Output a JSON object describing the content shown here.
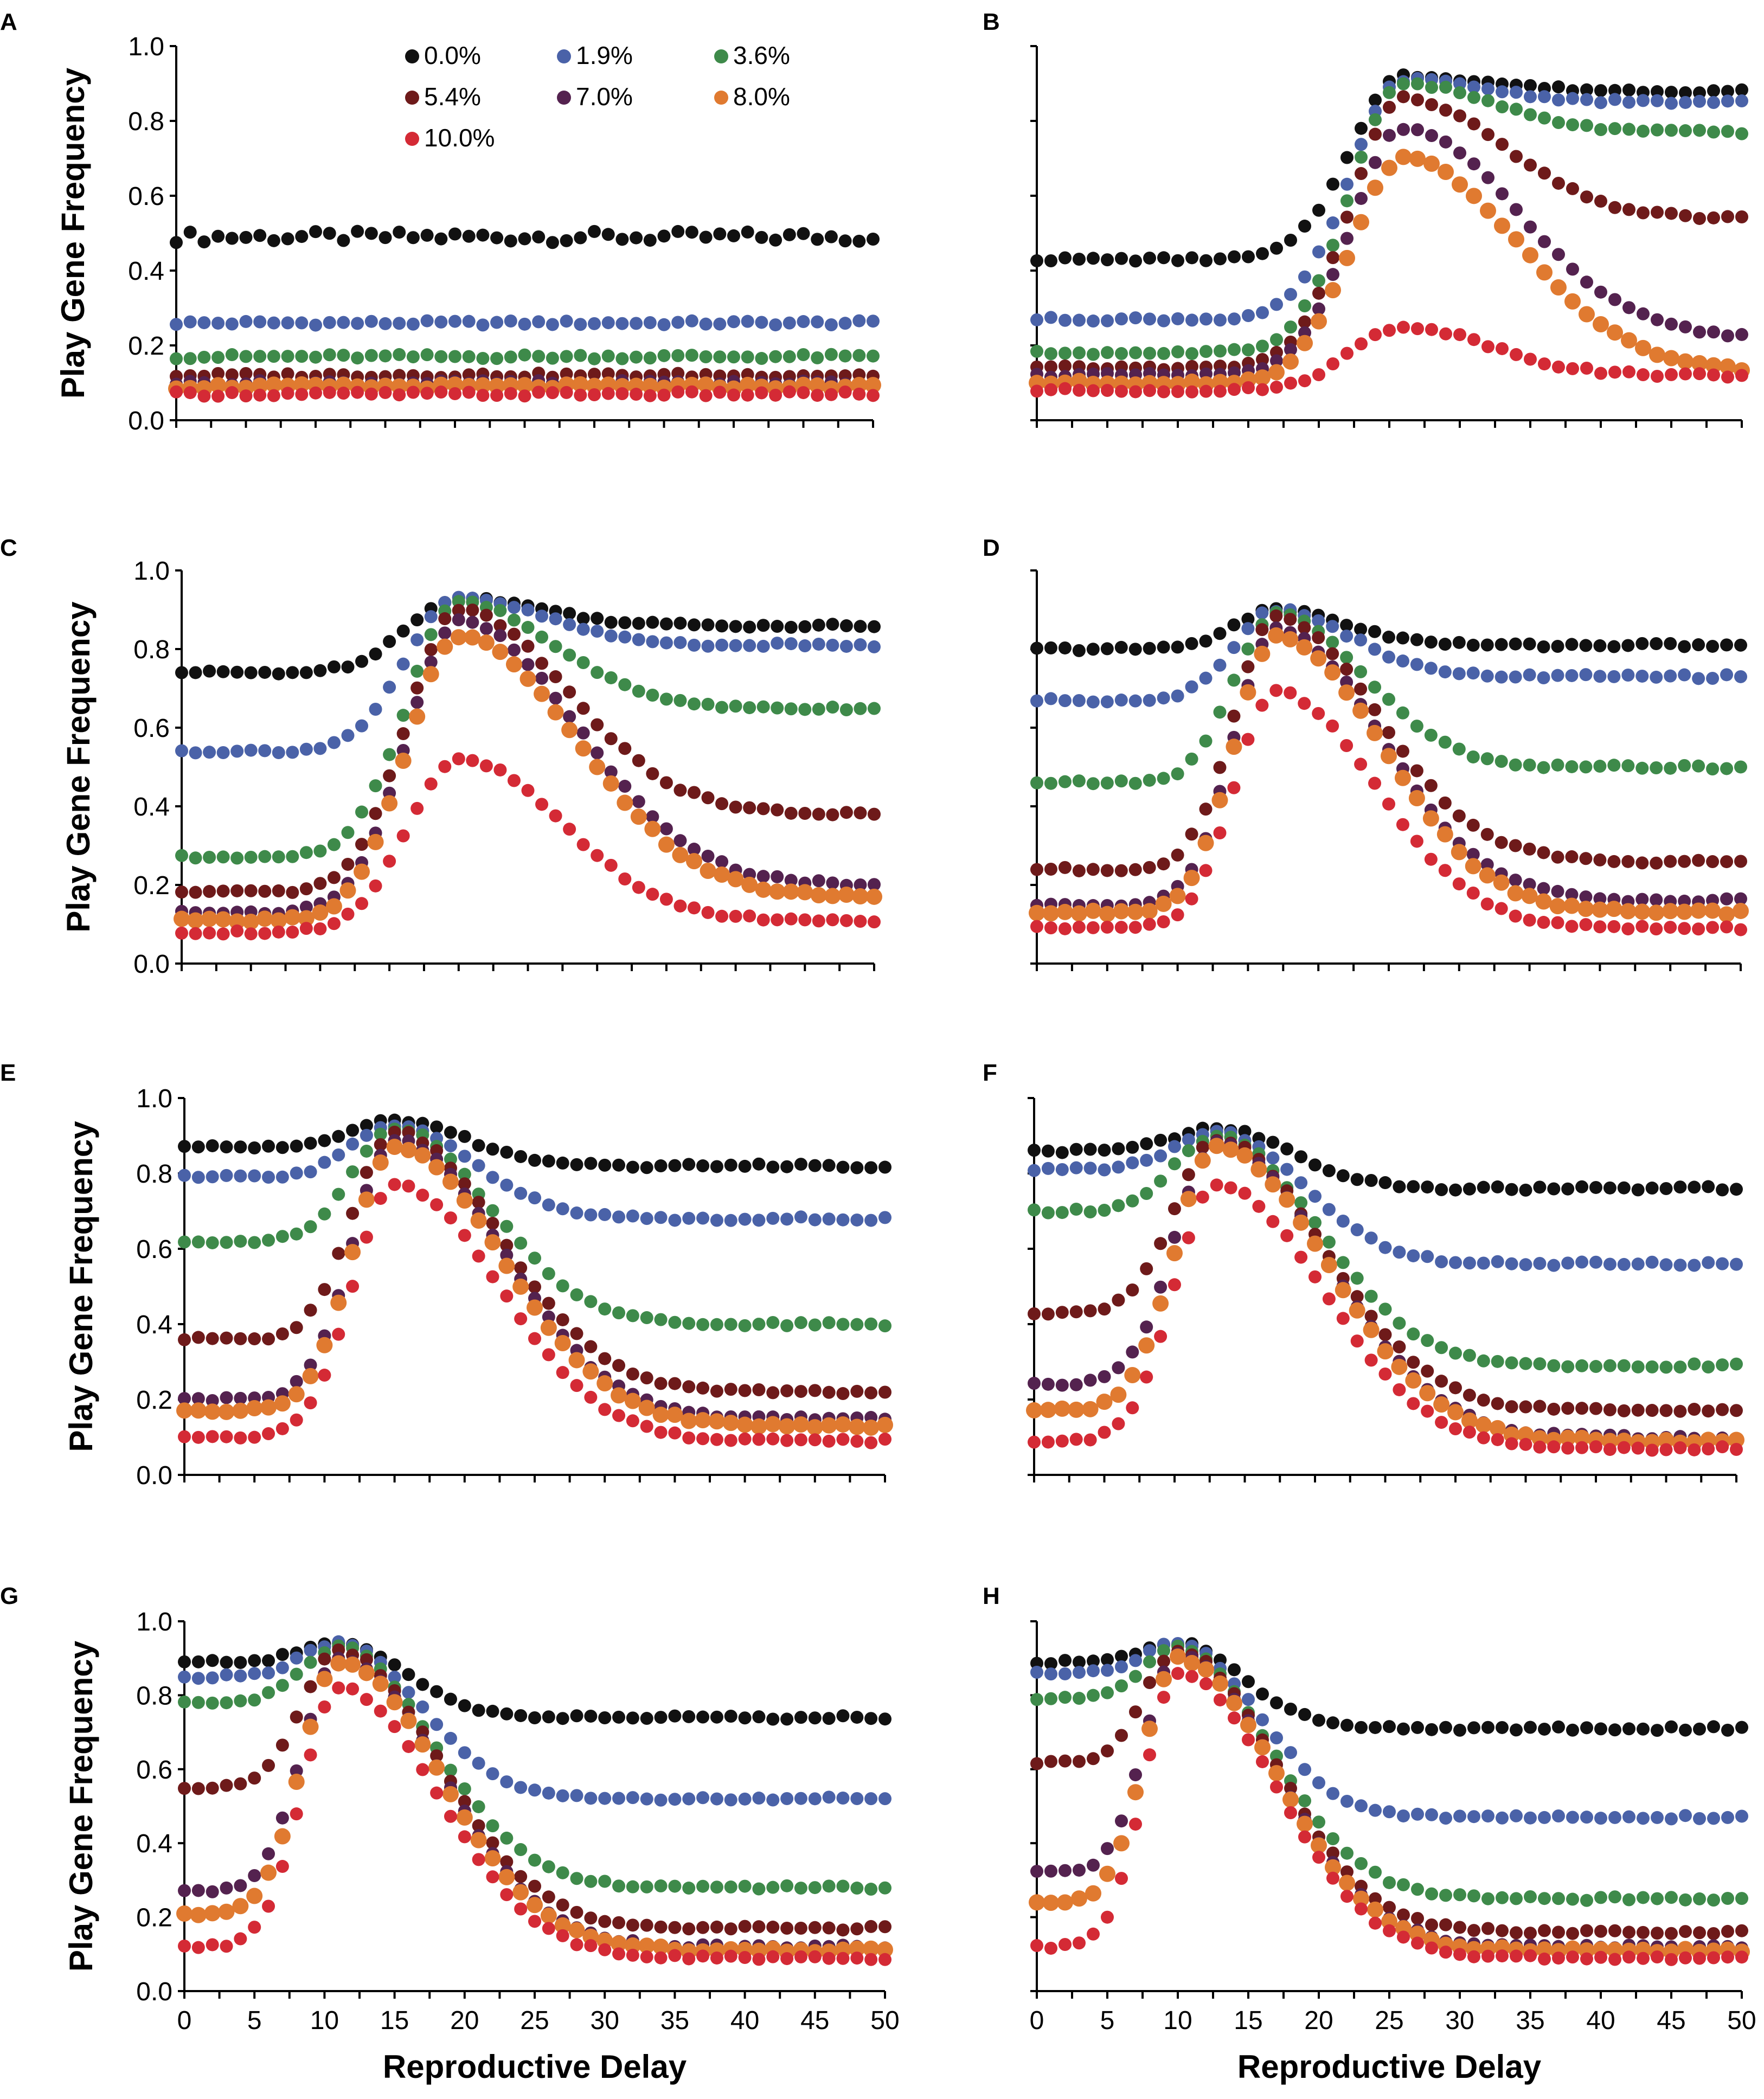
{
  "figure": {
    "ylabel": "Play Gene Frequency",
    "xlabel": "Reproductive Delay"
  },
  "legend": [
    {
      "label": "0.0%",
      "color": "#111111"
    },
    {
      "label": "1.9%",
      "color": "#4a62a8"
    },
    {
      "label": "3.6%",
      "color": "#3e8a4a"
    },
    {
      "label": "5.4%",
      "color": "#6e1a1a"
    },
    {
      "label": "7.0%",
      "color": "#54224f"
    },
    {
      "label": "8.0%",
      "color": "#e07a30"
    },
    {
      "label": "10.0%",
      "color": "#d42a35"
    }
  ],
  "axes": {
    "x_ticks": [
      "0",
      "5",
      "10",
      "15",
      "20",
      "25",
      "30",
      "35",
      "40",
      "45",
      "50"
    ],
    "y_ticks": [
      "0.0",
      "0.2",
      "0.4",
      "0.6",
      "0.8",
      "1.0"
    ],
    "xlim": [
      0,
      50
    ],
    "ylim": [
      0,
      1
    ]
  },
  "chart_data": [
    {
      "type": "scatter",
      "panel": "A",
      "peak": 0,
      "width": 12,
      "series": [
        {
          "name": "0.0%",
          "base": 0.49,
          "peak": 0.49,
          "tail": 0.49
        },
        {
          "name": "1.9%",
          "base": 0.26,
          "peak": 0.26,
          "tail": 0.26
        },
        {
          "name": "3.6%",
          "base": 0.17,
          "peak": 0.17,
          "tail": 0.17
        },
        {
          "name": "5.4%",
          "base": 0.12,
          "peak": 0.12,
          "tail": 0.12
        },
        {
          "name": "7.0%",
          "base": 0.1,
          "peak": 0.1,
          "tail": 0.1
        },
        {
          "name": "8.0%",
          "base": 0.09,
          "peak": 0.09,
          "tail": 0.09
        },
        {
          "name": "10.0%",
          "base": 0.07,
          "peak": 0.07,
          "tail": 0.07
        }
      ]
    },
    {
      "type": "scatter",
      "panel": "B",
      "peak": 26,
      "width": 5,
      "series": [
        {
          "name": "0.0%",
          "base": 0.43,
          "peak": 0.92,
          "tail": 0.88
        },
        {
          "name": "1.9%",
          "base": 0.27,
          "peak": 0.91,
          "tail": 0.85
        },
        {
          "name": "3.6%",
          "base": 0.18,
          "peak": 0.9,
          "tail": 0.77
        },
        {
          "name": "5.4%",
          "base": 0.14,
          "peak": 0.86,
          "tail": 0.54
        },
        {
          "name": "7.0%",
          "base": 0.12,
          "peak": 0.78,
          "tail": 0.22
        },
        {
          "name": "8.0%",
          "base": 0.1,
          "peak": 0.7,
          "tail": 0.13
        },
        {
          "name": "10.0%",
          "base": 0.08,
          "peak": 0.25,
          "tail": 0.12
        }
      ]
    },
    {
      "type": "scatter",
      "panel": "C",
      "peak": 20,
      "width": 5,
      "series": [
        {
          "name": "0.0%",
          "base": 0.74,
          "peak": 0.93,
          "tail": 0.86
        },
        {
          "name": "1.9%",
          "base": 0.54,
          "peak": 0.93,
          "tail": 0.81
        },
        {
          "name": "3.6%",
          "base": 0.27,
          "peak": 0.92,
          "tail": 0.65
        },
        {
          "name": "5.4%",
          "base": 0.18,
          "peak": 0.9,
          "tail": 0.38
        },
        {
          "name": "7.0%",
          "base": 0.13,
          "peak": 0.87,
          "tail": 0.2
        },
        {
          "name": "8.0%",
          "base": 0.11,
          "peak": 0.83,
          "tail": 0.17
        },
        {
          "name": "10.0%",
          "base": 0.08,
          "peak": 0.52,
          "tail": 0.11
        }
      ]
    },
    {
      "type": "scatter",
      "panel": "D",
      "peak": 17,
      "width": 4,
      "series": [
        {
          "name": "0.0%",
          "base": 0.8,
          "peak": 0.9,
          "tail": 0.81
        },
        {
          "name": "1.9%",
          "base": 0.67,
          "peak": 0.9,
          "tail": 0.73
        },
        {
          "name": "3.6%",
          "base": 0.46,
          "peak": 0.89,
          "tail": 0.5
        },
        {
          "name": "5.4%",
          "base": 0.24,
          "peak": 0.88,
          "tail": 0.26
        },
        {
          "name": "7.0%",
          "base": 0.15,
          "peak": 0.85,
          "tail": 0.16
        },
        {
          "name": "8.0%",
          "base": 0.13,
          "peak": 0.83,
          "tail": 0.13
        },
        {
          "name": "10.0%",
          "base": 0.09,
          "peak": 0.69,
          "tail": 0.09
        }
      ]
    },
    {
      "type": "scatter",
      "panel": "E",
      "peak": 15,
      "width": 4,
      "series": [
        {
          "name": "0.0%",
          "base": 0.87,
          "peak": 0.94,
          "tail": 0.82
        },
        {
          "name": "1.9%",
          "base": 0.79,
          "peak": 0.93,
          "tail": 0.68
        },
        {
          "name": "3.6%",
          "base": 0.62,
          "peak": 0.92,
          "tail": 0.4
        },
        {
          "name": "5.4%",
          "base": 0.36,
          "peak": 0.91,
          "tail": 0.22
        },
        {
          "name": "7.0%",
          "base": 0.2,
          "peak": 0.89,
          "tail": 0.15
        },
        {
          "name": "8.0%",
          "base": 0.17,
          "peak": 0.87,
          "tail": 0.13
        },
        {
          "name": "10.0%",
          "base": 0.1,
          "peak": 0.77,
          "tail": 0.09
        }
      ]
    },
    {
      "type": "scatter",
      "panel": "F",
      "peak": 13,
      "width": 4,
      "series": [
        {
          "name": "0.0%",
          "base": 0.86,
          "peak": 0.92,
          "tail": 0.76
        },
        {
          "name": "1.9%",
          "base": 0.81,
          "peak": 0.91,
          "tail": 0.56
        },
        {
          "name": "3.6%",
          "base": 0.7,
          "peak": 0.9,
          "tail": 0.29
        },
        {
          "name": "5.4%",
          "base": 0.43,
          "peak": 0.89,
          "tail": 0.17
        },
        {
          "name": "7.0%",
          "base": 0.24,
          "peak": 0.88,
          "tail": 0.1
        },
        {
          "name": "8.0%",
          "base": 0.17,
          "peak": 0.87,
          "tail": 0.09
        },
        {
          "name": "10.0%",
          "base": 0.09,
          "peak": 0.77,
          "tail": 0.07
        }
      ]
    },
    {
      "type": "scatter",
      "panel": "G",
      "peak": 11,
      "width": 3.5,
      "series": [
        {
          "name": "0.0%",
          "base": 0.89,
          "peak": 0.94,
          "tail": 0.74
        },
        {
          "name": "1.9%",
          "base": 0.85,
          "peak": 0.94,
          "tail": 0.52
        },
        {
          "name": "3.6%",
          "base": 0.78,
          "peak": 0.93,
          "tail": 0.28
        },
        {
          "name": "5.4%",
          "base": 0.55,
          "peak": 0.92,
          "tail": 0.17
        },
        {
          "name": "7.0%",
          "base": 0.27,
          "peak": 0.9,
          "tail": 0.12
        },
        {
          "name": "8.0%",
          "base": 0.21,
          "peak": 0.89,
          "tail": 0.11
        },
        {
          "name": "10.0%",
          "base": 0.12,
          "peak": 0.82,
          "tail": 0.09
        }
      ]
    },
    {
      "type": "scatter",
      "panel": "H",
      "peak": 10,
      "width": 3.2,
      "series": [
        {
          "name": "0.0%",
          "base": 0.89,
          "peak": 0.94,
          "tail": 0.71
        },
        {
          "name": "1.9%",
          "base": 0.86,
          "peak": 0.94,
          "tail": 0.47
        },
        {
          "name": "3.6%",
          "base": 0.79,
          "peak": 0.93,
          "tail": 0.25
        },
        {
          "name": "5.4%",
          "base": 0.62,
          "peak": 0.92,
          "tail": 0.16
        },
        {
          "name": "7.0%",
          "base": 0.32,
          "peak": 0.91,
          "tail": 0.12
        },
        {
          "name": "8.0%",
          "base": 0.24,
          "peak": 0.9,
          "tail": 0.11
        },
        {
          "name": "10.0%",
          "base": 0.12,
          "peak": 0.86,
          "tail": 0.09
        }
      ]
    }
  ]
}
